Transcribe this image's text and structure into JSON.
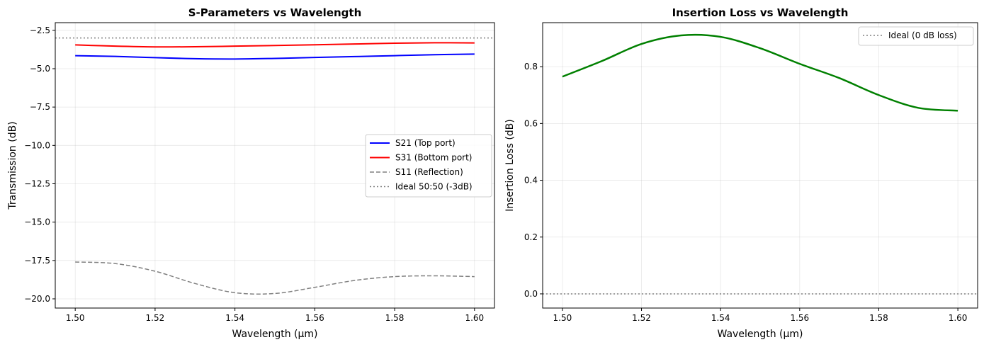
{
  "chart_data": [
    {
      "type": "line",
      "title": "S-Parameters vs Wavelength",
      "xlabel": "Wavelength (μm)",
      "ylabel": "Transmission (dB)",
      "xlim": [
        1.495,
        1.605
      ],
      "ylim": [
        -20.6,
        -2.0
      ],
      "xticks": [
        1.5,
        1.52,
        1.54,
        1.56,
        1.58,
        1.6
      ],
      "xtick_labels": [
        "1.50",
        "1.52",
        "1.54",
        "1.56",
        "1.58",
        "1.60"
      ],
      "yticks": [
        -2.5,
        -5.0,
        -7.5,
        -10.0,
        -12.5,
        -15.0,
        -17.5,
        -20.0
      ],
      "ytick_labels": [
        "−2.5",
        "−5.0",
        "−7.5",
        "−10.0",
        "−12.5",
        "−15.0",
        "−17.5",
        "−20.0"
      ],
      "grid": true,
      "legend_position": "center-right",
      "x": [
        1.5,
        1.51,
        1.52,
        1.53,
        1.54,
        1.55,
        1.56,
        1.57,
        1.58,
        1.59,
        1.6
      ],
      "series": [
        {
          "name": "S21 (Top port)",
          "color": "#0000ff",
          "style": "solid",
          "width": 2,
          "values": [
            -4.15,
            -4.2,
            -4.28,
            -4.35,
            -4.37,
            -4.33,
            -4.27,
            -4.21,
            -4.15,
            -4.09,
            -4.05
          ]
        },
        {
          "name": "S31 (Bottom port)",
          "color": "#ff0000",
          "style": "solid",
          "width": 2,
          "values": [
            -3.45,
            -3.53,
            -3.58,
            -3.57,
            -3.53,
            -3.49,
            -3.44,
            -3.39,
            -3.34,
            -3.31,
            -3.32
          ]
        },
        {
          "name": "S11 (Reflection)",
          "color": "#808080",
          "style": "dashed",
          "width": 1.5,
          "values": [
            -17.6,
            -17.7,
            -18.2,
            -19.0,
            -19.6,
            -19.65,
            -19.25,
            -18.8,
            -18.55,
            -18.5,
            -18.55
          ]
        },
        {
          "name": "Ideal 50:50 (-3dB)",
          "color": "#808080",
          "style": "dotted",
          "width": 1.5,
          "hline": -3.0
        }
      ]
    },
    {
      "type": "line",
      "title": "Insertion Loss vs Wavelength",
      "xlabel": "Wavelength (μm)",
      "ylabel": "Insertion Loss (dB)",
      "xlim": [
        1.495,
        1.605
      ],
      "ylim": [
        -0.05,
        0.955
      ],
      "xticks": [
        1.5,
        1.52,
        1.54,
        1.56,
        1.58,
        1.6
      ],
      "xtick_labels": [
        "1.50",
        "1.52",
        "1.54",
        "1.56",
        "1.58",
        "1.60"
      ],
      "yticks": [
        0.0,
        0.2,
        0.4,
        0.6,
        0.8
      ],
      "ytick_labels": [
        "0.0",
        "0.2",
        "0.4",
        "0.6",
        "0.8"
      ],
      "grid": true,
      "legend_position": "top-right",
      "x": [
        1.5,
        1.51,
        1.52,
        1.53,
        1.54,
        1.55,
        1.56,
        1.57,
        1.58,
        1.59,
        1.6
      ],
      "series": [
        {
          "name": "Insertion Loss",
          "color": "#008000",
          "style": "solid",
          "width": 2.5,
          "in_legend": false,
          "values": [
            0.765,
            0.82,
            0.88,
            0.91,
            0.905,
            0.865,
            0.81,
            0.76,
            0.7,
            0.655,
            0.645
          ]
        },
        {
          "name": "Ideal (0 dB loss)",
          "color": "#808080",
          "style": "dotted",
          "width": 1.5,
          "hline": 0.0
        }
      ]
    }
  ]
}
